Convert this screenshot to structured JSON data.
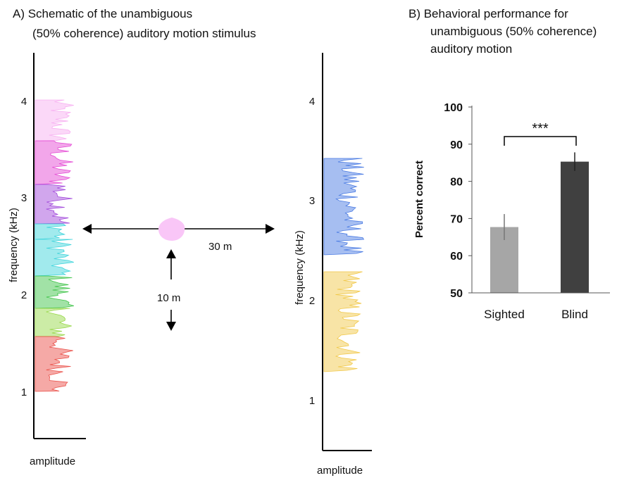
{
  "panel_a": {
    "title_line1": "A)  Schematic of the unambiguous",
    "title_line2": "(50% coherence) auditory motion stimulus",
    "left_spectrum": {
      "ylabel": "frequency (kHz)",
      "xlabel": "amplitude",
      "ticks": [
        "1",
        "2",
        "3",
        "4"
      ]
    },
    "right_spectrum": {
      "ylabel": "frequency (kHz)",
      "xlabel": "amplitude",
      "ticks": [
        "1",
        "2",
        "3",
        "4"
      ]
    },
    "distance_horizontal": "30 m",
    "distance_vertical": "10 m",
    "colors": {
      "red": "#e8413a",
      "orange": "#f29a3a",
      "yellow": "#e6d83a",
      "lime": "#8fd43a",
      "green": "#2fbf3a",
      "cyan": "#2fd0d8",
      "blue": "#3a6fe0",
      "purple": "#9a3ad8",
      "magenta": "#e23ad0",
      "pink": "#f6a8f0",
      "gold": "#f0c33a",
      "source": "#f9c6f7"
    }
  },
  "panel_b": {
    "title_line1": "B) Behavioral performance for",
    "title_line2": "unambiguous (50% coherence)",
    "title_line3": "auditory motion",
    "significance": "***"
  },
  "chart_data": {
    "type": "bar",
    "categories": [
      "Sighted",
      "Blind"
    ],
    "values": [
      67.7,
      85.3
    ],
    "errors": [
      3.5,
      2.5
    ],
    "ylabel": "Percent correct",
    "ylim": [
      50,
      100
    ],
    "yticks": [
      "50",
      "60",
      "70",
      "80",
      "90",
      "100"
    ],
    "colors": [
      "#a6a6a6",
      "#404040"
    ]
  }
}
